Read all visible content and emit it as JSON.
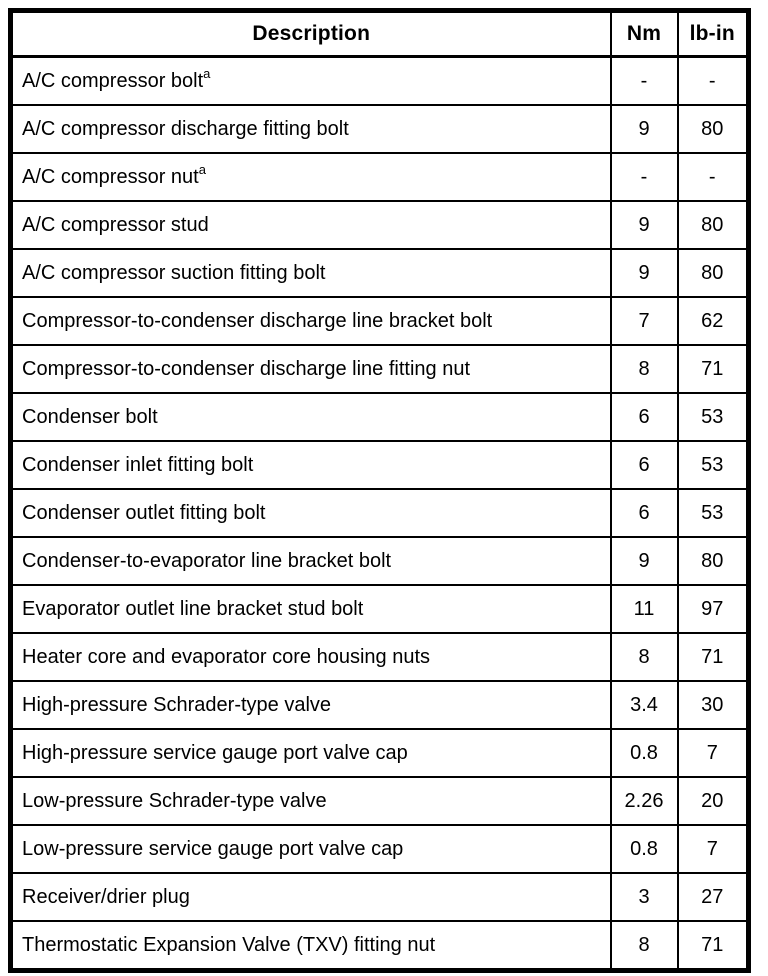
{
  "colors": {
    "border": "#000000",
    "background": "#ffffff",
    "text": "#000000"
  },
  "table": {
    "columns": [
      {
        "key": "description",
        "label": "Description"
      },
      {
        "key": "nm",
        "label": "Nm"
      },
      {
        "key": "lbin",
        "label": "lb-in"
      }
    ],
    "rows": [
      {
        "description": "A/C compressor bolt",
        "sup": "a",
        "nm": "-",
        "lbin": "-"
      },
      {
        "description": "A/C compressor discharge fitting bolt",
        "sup": "",
        "nm": "9",
        "lbin": "80"
      },
      {
        "description": "A/C compressor nut",
        "sup": "a",
        "nm": "-",
        "lbin": "-"
      },
      {
        "description": "A/C compressor stud",
        "sup": "",
        "nm": "9",
        "lbin": "80"
      },
      {
        "description": "A/C compressor suction fitting bolt",
        "sup": "",
        "nm": "9",
        "lbin": "80"
      },
      {
        "description": "Compressor-to-condenser discharge line bracket bolt",
        "sup": "",
        "nm": "7",
        "lbin": "62"
      },
      {
        "description": "Compressor-to-condenser discharge line fitting nut",
        "sup": "",
        "nm": "8",
        "lbin": "71"
      },
      {
        "description": "Condenser bolt",
        "sup": "",
        "nm": "6",
        "lbin": "53"
      },
      {
        "description": "Condenser inlet fitting bolt",
        "sup": "",
        "nm": "6",
        "lbin": "53"
      },
      {
        "description": "Condenser outlet fitting bolt",
        "sup": "",
        "nm": "6",
        "lbin": "53"
      },
      {
        "description": "Condenser-to-evaporator line bracket bolt",
        "sup": "",
        "nm": "9",
        "lbin": "80"
      },
      {
        "description": "Evaporator outlet line bracket stud bolt",
        "sup": "",
        "nm": "11",
        "lbin": "97"
      },
      {
        "description": "Heater core and evaporator core housing nuts",
        "sup": "",
        "nm": "8",
        "lbin": "71"
      },
      {
        "description": "High-pressure Schrader-type valve",
        "sup": "",
        "nm": "3.4",
        "lbin": "30"
      },
      {
        "description": "High-pressure service gauge port valve cap",
        "sup": "",
        "nm": "0.8",
        "lbin": "7"
      },
      {
        "description": "Low-pressure Schrader-type valve",
        "sup": "",
        "nm": "2.26",
        "lbin": "20"
      },
      {
        "description": "Low-pressure service gauge port valve cap",
        "sup": "",
        "nm": "0.8",
        "lbin": "7"
      },
      {
        "description": "Receiver/drier plug",
        "sup": "",
        "nm": "3",
        "lbin": "27"
      },
      {
        "description": "Thermostatic Expansion Valve (TXV) fitting nut",
        "sup": "",
        "nm": "8",
        "lbin": "71"
      }
    ]
  }
}
